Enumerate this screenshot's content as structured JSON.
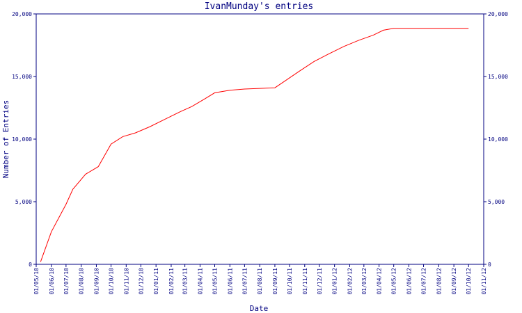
{
  "chart_data": {
    "type": "line",
    "title": "IvanMunday's entries",
    "xlabel": "Date",
    "ylabel": "Number of Entries",
    "ylim": [
      0,
      20000
    ],
    "y_ticks": [
      0,
      5000,
      10000,
      15000,
      20000
    ],
    "y_tick_labels": [
      "0",
      "5,000",
      "10,000",
      "15,000",
      "20,000"
    ],
    "right_axis_mirrors_left": true,
    "grid": false,
    "x_ticks": [
      "01/05/10",
      "01/06/10",
      "01/07/10",
      "01/08/10",
      "01/09/10",
      "01/10/10",
      "01/11/10",
      "01/12/10",
      "01/01/11",
      "01/02/11",
      "01/03/11",
      "01/04/11",
      "01/05/11",
      "01/06/11",
      "01/07/11",
      "01/08/11",
      "01/09/11",
      "01/10/11",
      "01/11/11",
      "01/12/11",
      "01/01/12",
      "01/02/12",
      "01/03/12",
      "01/04/12",
      "01/05/12",
      "01/06/12",
      "01/07/12",
      "01/08/12",
      "01/09/12",
      "01/10/12",
      "01/11/12"
    ],
    "series": [
      {
        "color": "#ff0000",
        "x": [
          "2010-05-10",
          "2010-06-01",
          "2010-07-01",
          "2010-07-15",
          "2010-08-10",
          "2010-09-05",
          "2010-10-01",
          "2010-10-25",
          "2010-11-20",
          "2010-12-20",
          "2011-01-20",
          "2011-02-20",
          "2011-03-15",
          "2011-04-10",
          "2011-05-01",
          "2011-06-01",
          "2011-07-01",
          "2011-08-01",
          "2011-09-01",
          "2011-09-20",
          "2011-10-20",
          "2011-11-20",
          "2011-12-20",
          "2012-01-20",
          "2012-02-20",
          "2012-03-20",
          "2012-04-10",
          "2012-05-01",
          "2012-06-01",
          "2012-08-01",
          "2012-10-01"
        ],
        "y": [
          200,
          2600,
          4800,
          6000,
          7200,
          7800,
          9600,
          10200,
          10500,
          11000,
          11600,
          12200,
          12600,
          13200,
          13700,
          13900,
          14000,
          14050,
          14100,
          14600,
          15400,
          16200,
          16800,
          17400,
          17900,
          18300,
          18700,
          18850,
          18850,
          18850,
          18850
        ]
      }
    ]
  }
}
